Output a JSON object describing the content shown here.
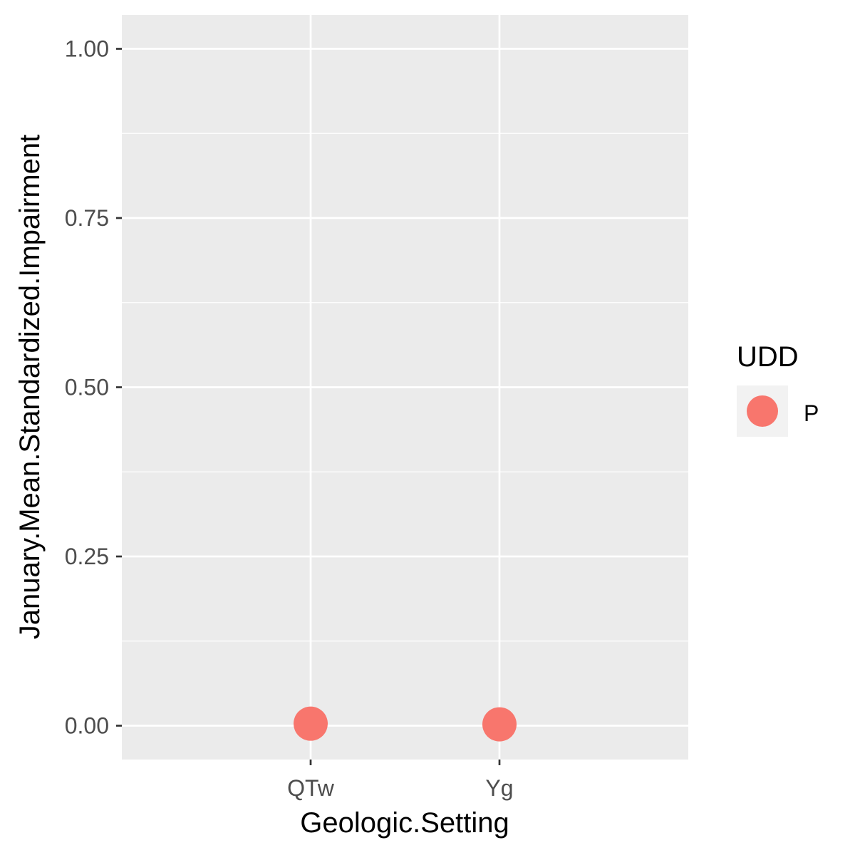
{
  "chart_data": {
    "type": "scatter",
    "xlabel": "Geologic.Setting",
    "ylabel": "January.Mean.Standardized.Impairment",
    "categories": [
      "QTw",
      "Yg"
    ],
    "ylim": [
      -0.05,
      1.05
    ],
    "yticks": [
      0.0,
      0.25,
      0.5,
      0.75,
      1.0
    ],
    "ytick_labels": [
      "0.00",
      "0.25",
      "0.50",
      "0.75",
      "1.00"
    ],
    "grid": true,
    "legend": {
      "title": "UDD",
      "placement": "right",
      "entries": [
        {
          "label": "P",
          "color": "#F8766D"
        }
      ]
    },
    "series": [
      {
        "group": "P",
        "color": "#F8766D",
        "points": [
          {
            "x": "QTw",
            "y": 0.003
          },
          {
            "x": "Yg",
            "y": 0.002
          }
        ]
      }
    ]
  },
  "colors": {
    "panel_background": "#EBEBEB",
    "grid": "#FFFFFF",
    "tick": "#333333"
  }
}
